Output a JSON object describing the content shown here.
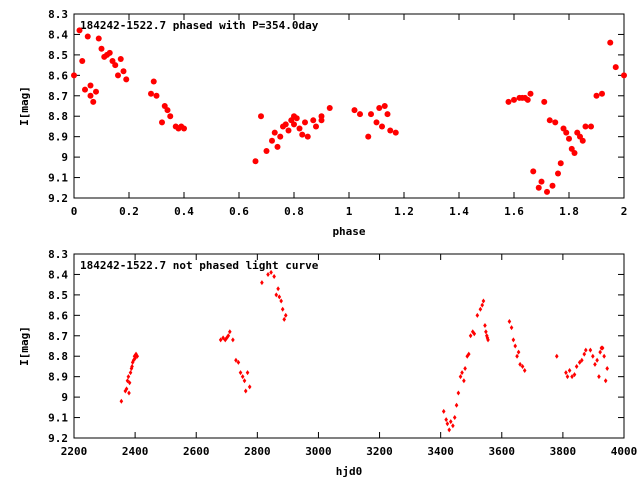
{
  "colors": {
    "points": "#ff0000",
    "axes": "#000000",
    "background": "#ffffff"
  },
  "chart_data": [
    {
      "type": "scatter",
      "title": "184242-1522.7 phased with P=354.0day",
      "xlabel": "phase",
      "ylabel": "I[mag]",
      "xlim": [
        0,
        2
      ],
      "ylim": [
        8.3,
        9.2
      ],
      "y_inverted": true,
      "grid": false,
      "marker": "filled-circle",
      "xticks": [
        "0",
        "0.2",
        "0.4",
        "0.6",
        "0.8",
        "1",
        "1.2",
        "1.4",
        "1.6",
        "1.8",
        "2"
      ],
      "yticks": [
        "8.3",
        "8.4",
        "8.5",
        "8.6",
        "8.7",
        "8.8",
        "8.9",
        "9",
        "9.1",
        "9.2"
      ],
      "series": [
        {
          "x": [
            0.0,
            0.02,
            0.03,
            0.04,
            0.05,
            0.06,
            0.06,
            0.07,
            0.08,
            0.09,
            0.1,
            0.11,
            0.12,
            0.13,
            0.14,
            0.15,
            0.16,
            0.17,
            0.18,
            0.19,
            0.28,
            0.29,
            0.3,
            0.32,
            0.33,
            0.34,
            0.35,
            0.37,
            0.38,
            0.39,
            0.4,
            0.66,
            0.68,
            0.7,
            0.72,
            0.73,
            0.74,
            0.75,
            0.76,
            0.77,
            0.78,
            0.79,
            0.8,
            0.8,
            0.81,
            0.82,
            0.83,
            0.84,
            0.85,
            0.87,
            0.88,
            0.9,
            0.9,
            0.93,
            1.02,
            1.04,
            1.07,
            1.08,
            1.1,
            1.11,
            1.12,
            1.13,
            1.14,
            1.15,
            1.17,
            1.58,
            1.6,
            1.62,
            1.63,
            1.64,
            1.65,
            1.66,
            1.67,
            1.69,
            1.7,
            1.71,
            1.72,
            1.73,
            1.74,
            1.75,
            1.76,
            1.77,
            1.78,
            1.79,
            1.8,
            1.81,
            1.82,
            1.83,
            1.84,
            1.85,
            1.86,
            1.88,
            1.9,
            1.92,
            1.95,
            1.97,
            2.0
          ],
          "y": [
            8.6,
            8.38,
            8.53,
            8.67,
            8.41,
            8.65,
            8.7,
            8.73,
            8.68,
            8.42,
            8.47,
            8.51,
            8.5,
            8.49,
            8.53,
            8.55,
            8.6,
            8.52,
            8.58,
            8.62,
            8.69,
            8.63,
            8.7,
            8.83,
            8.75,
            8.77,
            8.8,
            8.85,
            8.86,
            8.85,
            8.86,
            9.02,
            8.8,
            8.97,
            8.92,
            8.88,
            8.95,
            8.9,
            8.85,
            8.84,
            8.87,
            8.82,
            8.8,
            8.84,
            8.81,
            8.86,
            8.89,
            8.83,
            8.9,
            8.82,
            8.85,
            8.8,
            8.82,
            8.76,
            8.77,
            8.79,
            8.9,
            8.79,
            8.83,
            8.76,
            8.85,
            8.75,
            8.79,
            8.87,
            8.88,
            8.73,
            8.72,
            8.71,
            8.71,
            8.71,
            8.72,
            8.69,
            9.07,
            9.15,
            9.12,
            8.73,
            9.17,
            8.82,
            9.14,
            8.83,
            9.08,
            9.03,
            8.86,
            8.88,
            8.91,
            8.96,
            8.98,
            8.88,
            8.9,
            8.92,
            8.85,
            8.85,
            8.7,
            8.69,
            8.44,
            8.56,
            8.6
          ]
        }
      ]
    },
    {
      "type": "scatter",
      "title": "184242-1522.7 not phased light curve",
      "xlabel": "hjd0",
      "ylabel": "I[mag]",
      "xlim": [
        2200,
        4000
      ],
      "ylim": [
        8.3,
        9.2
      ],
      "y_inverted": true,
      "grid": false,
      "marker": "small-diamond",
      "xticks": [
        "2200",
        "2400",
        "2600",
        "2800",
        "3000",
        "3200",
        "3400",
        "3600",
        "3800",
        "4000"
      ],
      "yticks": [
        "8.3",
        "8.4",
        "8.5",
        "8.6",
        "8.7",
        "8.8",
        "8.9",
        "9",
        "9.1",
        "9.2"
      ],
      "series": [
        {
          "x": [
            2355,
            2368,
            2372,
            2375,
            2378,
            2380,
            2382,
            2385,
            2388,
            2390,
            2392,
            2395,
            2398,
            2400,
            2403,
            2407,
            2680,
            2688,
            2695,
            2700,
            2705,
            2710,
            2720,
            2730,
            2738,
            2745,
            2752,
            2758,
            2762,
            2768,
            2775,
            2815,
            2835,
            2845,
            2855,
            2862,
            2868,
            2872,
            2878,
            2883,
            2888,
            2893,
            3410,
            3418,
            3422,
            3428,
            3433,
            3440,
            3446,
            3452,
            3458,
            3465,
            3470,
            3476,
            3480,
            3487,
            3492,
            3498,
            3505,
            3510,
            3520,
            3530,
            3536,
            3540,
            3545,
            3548,
            3551,
            3553,
            3555,
            3625,
            3632,
            3638,
            3644,
            3650,
            3655,
            3660,
            3668,
            3675,
            3780,
            3810,
            3815,
            3822,
            3830,
            3838,
            3845,
            3855,
            3862,
            3870,
            3875,
            3890,
            3898,
            3905,
            3912,
            3918,
            3922,
            3926,
            3930,
            3935,
            3940,
            3945
          ],
          "y": [
            9.02,
            8.97,
            8.96,
            8.92,
            8.9,
            8.98,
            8.93,
            8.88,
            8.86,
            8.85,
            8.83,
            8.82,
            8.8,
            8.81,
            8.79,
            8.8,
            8.72,
            8.71,
            8.72,
            8.71,
            8.7,
            8.68,
            8.72,
            8.82,
            8.83,
            8.88,
            8.9,
            8.92,
            8.97,
            8.88,
            8.95,
            8.44,
            8.4,
            8.39,
            8.41,
            8.5,
            8.47,
            8.51,
            8.53,
            8.57,
            8.62,
            8.6,
            9.07,
            9.11,
            9.13,
            9.16,
            9.12,
            9.14,
            9.1,
            9.04,
            8.98,
            8.9,
            8.88,
            8.92,
            8.86,
            8.8,
            8.79,
            8.7,
            8.68,
            8.69,
            8.6,
            8.57,
            8.55,
            8.53,
            8.65,
            8.68,
            8.7,
            8.71,
            8.72,
            8.63,
            8.66,
            8.72,
            8.75,
            8.8,
            8.78,
            8.84,
            8.85,
            8.87,
            8.8,
            8.88,
            8.9,
            8.87,
            8.9,
            8.89,
            8.85,
            8.83,
            8.82,
            8.79,
            8.77,
            8.77,
            8.8,
            8.84,
            8.82,
            8.9,
            8.78,
            8.76,
            8.76,
            8.8,
            8.92,
            8.86
          ]
        }
      ]
    }
  ]
}
